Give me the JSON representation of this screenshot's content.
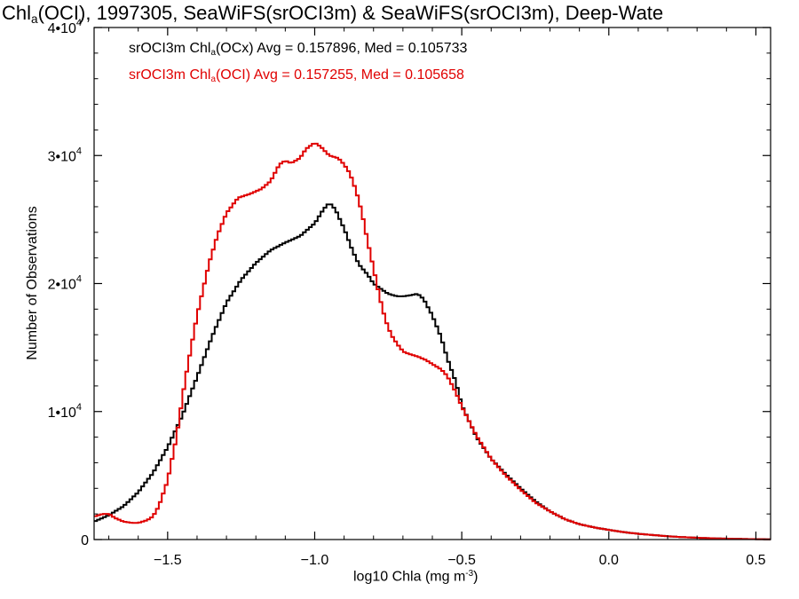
{
  "chart_data": {
    "type": "line",
    "title": {
      "pre": "Chl",
      "sub": "a",
      "post": "(OCI), 1997305, SeaWiFS(srOCI3m) & SeaWiFS(srOCI3m), Deep-Wate"
    },
    "xlabel": {
      "pre": "log10 Chla (mg m",
      "sup": "-3",
      "post": ")"
    },
    "ylabel": "Number of Observations",
    "xlim": [
      -1.75,
      0.55
    ],
    "ylim": [
      0,
      40000
    ],
    "x_ticks": [
      {
        "value": -1.5,
        "label": "−1.5"
      },
      {
        "value": -1.0,
        "label": "−1.0"
      },
      {
        "value": -0.5,
        "label": "−0.5"
      },
      {
        "value": 0.0,
        "label": "0.0"
      },
      {
        "value": 0.5,
        "label": "0.5"
      }
    ],
    "y_ticks": [
      {
        "value": 0,
        "label": "0",
        "exp": ""
      },
      {
        "value": 10000,
        "label": "1•10",
        "exp": "4"
      },
      {
        "value": 20000,
        "label": "2•10",
        "exp": "4"
      },
      {
        "value": 30000,
        "label": "3•10",
        "exp": "4"
      },
      {
        "value": 40000,
        "label": "4•10",
        "exp": "4"
      }
    ],
    "series": [
      {
        "name": {
          "pre": "srOCI3m Chl",
          "sub": "a",
          "post": "(OCx) Avg = 0.157896, Med = 0.105733"
        },
        "color": "#000000",
        "points": [
          [
            -1.75,
            1400
          ],
          [
            -1.7,
            1900
          ],
          [
            -1.65,
            2600
          ],
          [
            -1.6,
            3700
          ],
          [
            -1.55,
            5200
          ],
          [
            -1.5,
            7200
          ],
          [
            -1.45,
            9700
          ],
          [
            -1.4,
            12700
          ],
          [
            -1.35,
            15800
          ],
          [
            -1.3,
            18500
          ],
          [
            -1.25,
            20300
          ],
          [
            -1.2,
            21600
          ],
          [
            -1.15,
            22600
          ],
          [
            -1.1,
            23200
          ],
          [
            -1.05,
            23700
          ],
          [
            -1.0,
            24700
          ],
          [
            -0.97,
            25800
          ],
          [
            -0.95,
            26300
          ],
          [
            -0.93,
            25800
          ],
          [
            -0.9,
            24300
          ],
          [
            -0.87,
            22500
          ],
          [
            -0.85,
            21500
          ],
          [
            -0.82,
            20700
          ],
          [
            -0.8,
            20000
          ],
          [
            -0.77,
            19500
          ],
          [
            -0.75,
            19200
          ],
          [
            -0.72,
            19000
          ],
          [
            -0.7,
            19000
          ],
          [
            -0.67,
            19100
          ],
          [
            -0.65,
            19200
          ],
          [
            -0.63,
            18800
          ],
          [
            -0.6,
            17500
          ],
          [
            -0.57,
            15800
          ],
          [
            -0.55,
            14200
          ],
          [
            -0.52,
            12300
          ],
          [
            -0.5,
            10500
          ],
          [
            -0.45,
            8000
          ],
          [
            -0.4,
            6300
          ],
          [
            -0.35,
            5100
          ],
          [
            -0.3,
            4000
          ],
          [
            -0.25,
            3000
          ],
          [
            -0.2,
            2200
          ],
          [
            -0.15,
            1600
          ],
          [
            -0.1,
            1200
          ],
          [
            -0.05,
            950
          ],
          [
            0.0,
            750
          ],
          [
            0.05,
            580
          ],
          [
            0.1,
            450
          ],
          [
            0.15,
            350
          ],
          [
            0.2,
            260
          ],
          [
            0.25,
            190
          ],
          [
            0.3,
            140
          ],
          [
            0.35,
            100
          ],
          [
            0.4,
            70
          ],
          [
            0.45,
            45
          ],
          [
            0.5,
            30
          ],
          [
            0.55,
            20
          ]
        ]
      },
      {
        "name": {
          "pre": "srOCI3m Chl",
          "sub": "a",
          "post": "(OCI) Avg = 0.157255, Med = 0.105658"
        },
        "color": "#e00000",
        "points": [
          [
            -1.75,
            1800
          ],
          [
            -1.72,
            2000
          ],
          [
            -1.7,
            2000
          ],
          [
            -1.68,
            1700
          ],
          [
            -1.65,
            1400
          ],
          [
            -1.62,
            1300
          ],
          [
            -1.6,
            1300
          ],
          [
            -1.57,
            1500
          ],
          [
            -1.55,
            1800
          ],
          [
            -1.53,
            2600
          ],
          [
            -1.5,
            4600
          ],
          [
            -1.47,
            8000
          ],
          [
            -1.44,
            12500
          ],
          [
            -1.4,
            17500
          ],
          [
            -1.36,
            21500
          ],
          [
            -1.33,
            23800
          ],
          [
            -1.3,
            25500
          ],
          [
            -1.26,
            26700
          ],
          [
            -1.22,
            27000
          ],
          [
            -1.18,
            27400
          ],
          [
            -1.15,
            28000
          ],
          [
            -1.12,
            29300
          ],
          [
            -1.1,
            29600
          ],
          [
            -1.08,
            29400
          ],
          [
            -1.05,
            29800
          ],
          [
            -1.03,
            30500
          ],
          [
            -1.0,
            31000
          ],
          [
            -0.98,
            30700
          ],
          [
            -0.95,
            30000
          ],
          [
            -0.92,
            29800
          ],
          [
            -0.9,
            29300
          ],
          [
            -0.88,
            28600
          ],
          [
            -0.86,
            27300
          ],
          [
            -0.84,
            25600
          ],
          [
            -0.82,
            23300
          ],
          [
            -0.8,
            21200
          ],
          [
            -0.78,
            19000
          ],
          [
            -0.76,
            17200
          ],
          [
            -0.74,
            16000
          ],
          [
            -0.72,
            15300
          ],
          [
            -0.7,
            14700
          ],
          [
            -0.68,
            14500
          ],
          [
            -0.65,
            14300
          ],
          [
            -0.62,
            14000
          ],
          [
            -0.6,
            13700
          ],
          [
            -0.57,
            13300
          ],
          [
            -0.55,
            12800
          ],
          [
            -0.52,
            11500
          ],
          [
            -0.5,
            10400
          ],
          [
            -0.45,
            8100
          ],
          [
            -0.4,
            6300
          ],
          [
            -0.35,
            5000
          ],
          [
            -0.3,
            3900
          ],
          [
            -0.25,
            2900
          ],
          [
            -0.2,
            2200
          ],
          [
            -0.15,
            1600
          ],
          [
            -0.1,
            1200
          ],
          [
            -0.05,
            950
          ],
          [
            0.0,
            750
          ],
          [
            0.05,
            580
          ],
          [
            0.1,
            450
          ],
          [
            0.15,
            350
          ],
          [
            0.2,
            260
          ],
          [
            0.25,
            190
          ],
          [
            0.3,
            140
          ],
          [
            0.35,
            100
          ],
          [
            0.4,
            70
          ],
          [
            0.45,
            45
          ],
          [
            0.5,
            30
          ],
          [
            0.55,
            20
          ]
        ]
      }
    ],
    "grid": false,
    "legend_placement": "top-left"
  }
}
